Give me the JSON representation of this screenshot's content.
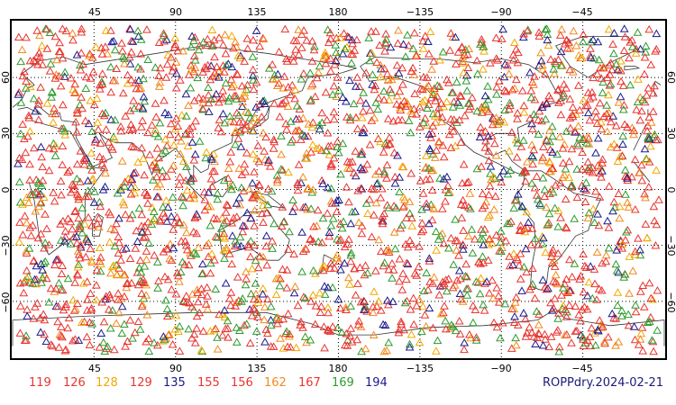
{
  "map": {
    "top_lon_labels": [
      "45",
      "90",
      "135",
      "180",
      "−135",
      "−90",
      "−45"
    ],
    "bottom_lon_labels": [
      "45",
      "90",
      "135",
      "180",
      "−135",
      "−90",
      "−45"
    ],
    "left_lat_labels": [
      "60",
      "30",
      "0",
      "−30",
      "−60"
    ],
    "right_lat_labels": [
      "60",
      "30",
      "0",
      "−30",
      "−60"
    ],
    "lon_range": [
      0,
      360
    ],
    "lat_range": [
      -90,
      90
    ],
    "grid": "dotted",
    "marker": "open-triangle",
    "coastline_color": "#333333"
  },
  "legend": {
    "items": [
      {
        "label": "119",
        "color": "#e8342f"
      },
      {
        "label": "126",
        "color": "#e8342f"
      },
      {
        "label": "128",
        "color": "#f2a900"
      },
      {
        "label": "129",
        "color": "#e8342f"
      },
      {
        "label": "135",
        "color": "#1a1a8c"
      },
      {
        "label": "155",
        "color": "#e8342f"
      },
      {
        "label": "156",
        "color": "#e8342f"
      },
      {
        "label": "162",
        "color": "#f28a1e"
      },
      {
        "label": "167",
        "color": "#e8342f"
      },
      {
        "label": "169",
        "color": "#2e9a2e"
      },
      {
        "label": "194",
        "color": "#1a1a8c"
      }
    ]
  },
  "stamp": "ROPPdry.2024-02-21"
}
